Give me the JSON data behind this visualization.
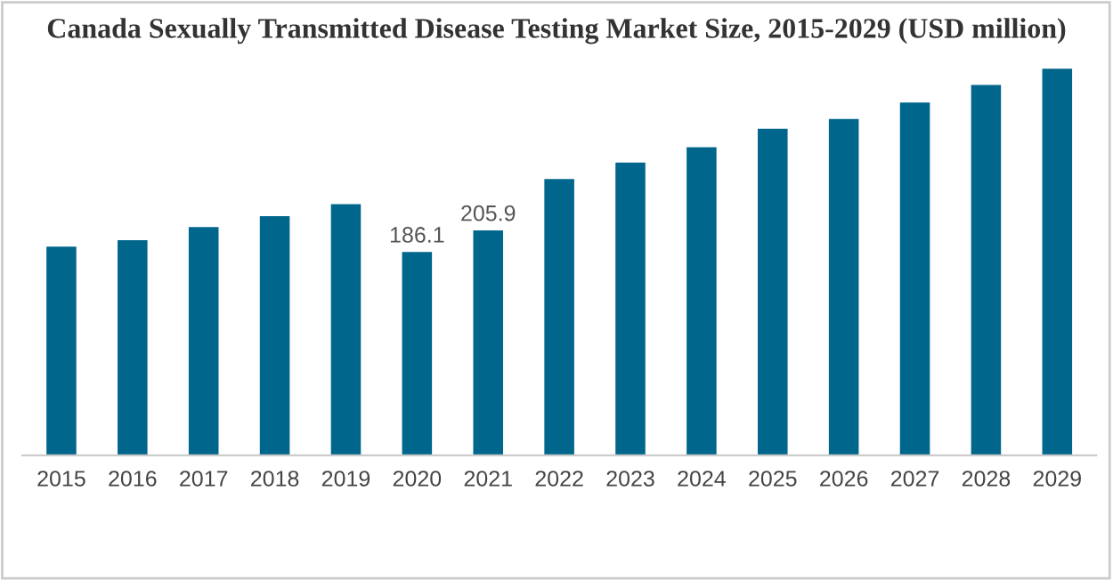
{
  "chart_data": {
    "type": "bar",
    "title": "Canada Sexually Transmitted Disease Testing Market Size, 2015-2029 (USD million)",
    "categories": [
      "2015",
      "2016",
      "2017",
      "2018",
      "2019",
      "2020",
      "2021",
      "2022",
      "2023",
      "2024",
      "2025",
      "2026",
      "2027",
      "2028",
      "2029"
    ],
    "values": [
      191,
      197,
      209,
      219,
      230,
      186.1,
      205.9,
      253,
      268,
      282,
      299,
      308,
      323,
      339,
      354
    ],
    "value_labels": [
      null,
      null,
      null,
      null,
      null,
      "186.1",
      "205.9",
      null,
      null,
      null,
      null,
      null,
      null,
      null,
      null
    ],
    "color": "#00668c",
    "grid": false,
    "legend": false
  }
}
